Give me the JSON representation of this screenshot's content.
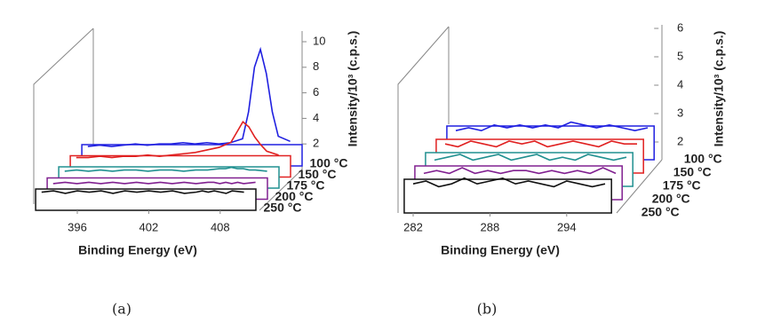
{
  "chart_data": [
    {
      "type": "waterfall",
      "caption": "(a)",
      "xlabel": "Binding Energy (eV)",
      "ylabel": "Intensity/10³ (c.p.s.)",
      "xlim": [
        392.5,
        411
      ],
      "xticks": [
        396,
        402,
        408
      ],
      "ylim": [
        0,
        11
      ],
      "yticks": [
        2,
        4,
        6,
        8,
        10
      ],
      "x": [
        393,
        394,
        395,
        396,
        397,
        398,
        399,
        400,
        401,
        402,
        403,
        404,
        405,
        406,
        406.5,
        407,
        407.5,
        408,
        408.5,
        409,
        410
      ],
      "series": [
        {
          "name": "100 °C",
          "color": "#2020e0",
          "values": [
            1.8,
            1.9,
            1.8,
            1.9,
            2.0,
            1.9,
            2.0,
            2.0,
            2.1,
            2.0,
            2.1,
            2.0,
            2.1,
            2.4,
            4.5,
            8.0,
            9.4,
            7.5,
            4.5,
            2.6,
            2.2
          ]
        },
        {
          "name": "150 °C",
          "color": "#e02020",
          "values": [
            1.8,
            1.8,
            1.9,
            1.8,
            1.9,
            1.9,
            2.0,
            1.9,
            2.0,
            2.1,
            2.2,
            2.4,
            2.6,
            3.0,
            3.8,
            4.6,
            4.2,
            3.4,
            2.8,
            2.3,
            2.0
          ]
        },
        {
          "name": "175 °C",
          "color": "#209090",
          "values": [
            1.6,
            1.7,
            1.6,
            1.7,
            1.6,
            1.7,
            1.7,
            1.6,
            1.7,
            1.7,
            1.6,
            1.7,
            1.7,
            1.8,
            1.8,
            1.9,
            1.8,
            1.8,
            1.7,
            1.7,
            1.6
          ]
        },
        {
          "name": "200 °C",
          "color": "#802090",
          "values": [
            1.5,
            1.6,
            1.5,
            1.6,
            1.5,
            1.6,
            1.5,
            1.6,
            1.5,
            1.6,
            1.5,
            1.6,
            1.5,
            1.6,
            1.6,
            1.5,
            1.6,
            1.5,
            1.6,
            1.5,
            1.6
          ]
        },
        {
          "name": "250 °C",
          "color": "#111111",
          "values": [
            1.7,
            1.8,
            1.6,
            1.8,
            1.7,
            1.8,
            1.6,
            1.8,
            1.7,
            1.8,
            1.7,
            1.8,
            1.6,
            1.7,
            1.8,
            1.7,
            1.8,
            1.7,
            1.6,
            1.8,
            1.7
          ]
        }
      ]
    },
    {
      "type": "waterfall",
      "caption": "(b)",
      "xlabel": "Binding Energy (eV)",
      "ylabel": "Intensity/10³ (c.p.s.)",
      "xlim": [
        281.3,
        297.5
      ],
      "xticks": [
        282,
        288,
        294
      ],
      "ylim": [
        1.5,
        6.2
      ],
      "yticks": [
        2,
        3,
        4,
        5,
        6
      ],
      "x": [
        282,
        283,
        284,
        285,
        286,
        287,
        288,
        289,
        290,
        291,
        292,
        293,
        294,
        295,
        296,
        297
      ],
      "series": [
        {
          "name": "100 °C",
          "color": "#2020e0",
          "values": [
            2.4,
            2.5,
            2.4,
            2.6,
            2.5,
            2.6,
            2.5,
            2.6,
            2.5,
            2.7,
            2.6,
            2.5,
            2.6,
            2.5,
            2.4,
            2.5
          ]
        },
        {
          "name": "150 °C",
          "color": "#e02020",
          "values": [
            2.4,
            2.3,
            2.5,
            2.4,
            2.3,
            2.5,
            2.4,
            2.5,
            2.3,
            2.4,
            2.5,
            2.4,
            2.3,
            2.5,
            2.4,
            2.4
          ]
        },
        {
          "name": "175 °C",
          "color": "#209090",
          "values": [
            2.3,
            2.4,
            2.5,
            2.3,
            2.4,
            2.5,
            2.3,
            2.4,
            2.5,
            2.3,
            2.4,
            2.3,
            2.5,
            2.4,
            2.3,
            2.4
          ]
        },
        {
          "name": "200 °C",
          "color": "#802090",
          "values": [
            2.3,
            2.4,
            2.3,
            2.5,
            2.3,
            2.4,
            2.3,
            2.4,
            2.4,
            2.3,
            2.4,
            2.3,
            2.4,
            2.3,
            2.5,
            2.3
          ]
        },
        {
          "name": "250 °C",
          "color": "#111111",
          "values": [
            2.4,
            2.5,
            2.3,
            2.4,
            2.6,
            2.4,
            2.5,
            2.6,
            2.4,
            2.5,
            2.4,
            2.3,
            2.5,
            2.4,
            2.3,
            2.4
          ]
        }
      ]
    }
  ]
}
